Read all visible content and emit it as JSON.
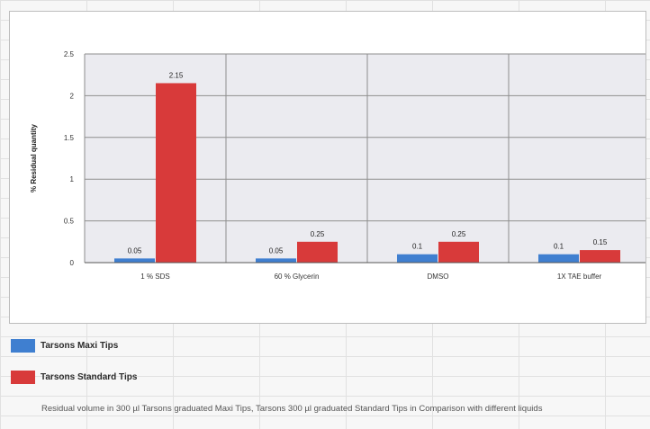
{
  "chart_data": {
    "type": "bar",
    "title": "",
    "xlabel": "",
    "ylabel": "% Residual quantity",
    "ylim": [
      0,
      2.5
    ],
    "yticks": [
      "0",
      "0.5",
      "1",
      "1.5",
      "2",
      "2.5"
    ],
    "grid": true,
    "legend_position": "bottom",
    "categories": [
      "1 % SDS",
      "60 % Glycerin",
      "DMSO",
      "1X TAE buffer"
    ],
    "series": [
      {
        "name": "Tarsons Maxi Tips",
        "color": "#3f7fd0",
        "values": [
          0.05,
          0.05,
          0.1,
          0.1
        ],
        "labels": [
          "0.05",
          "0.05",
          "0.1",
          "0.1"
        ]
      },
      {
        "name": "Tarsons Standard Tips",
        "color": "#d83a3a",
        "values": [
          2.15,
          0.25,
          0.25,
          0.15
        ],
        "labels": [
          "2.15",
          "0.25",
          "0.25",
          "0.15"
        ]
      }
    ],
    "plot_background": "#ebebf0",
    "caption": "Residual volume in 300 µl Tarsons graduated Maxi Tips, Tarsons 300 µl graduated  Standard Tips in Comparison with different liquids"
  }
}
